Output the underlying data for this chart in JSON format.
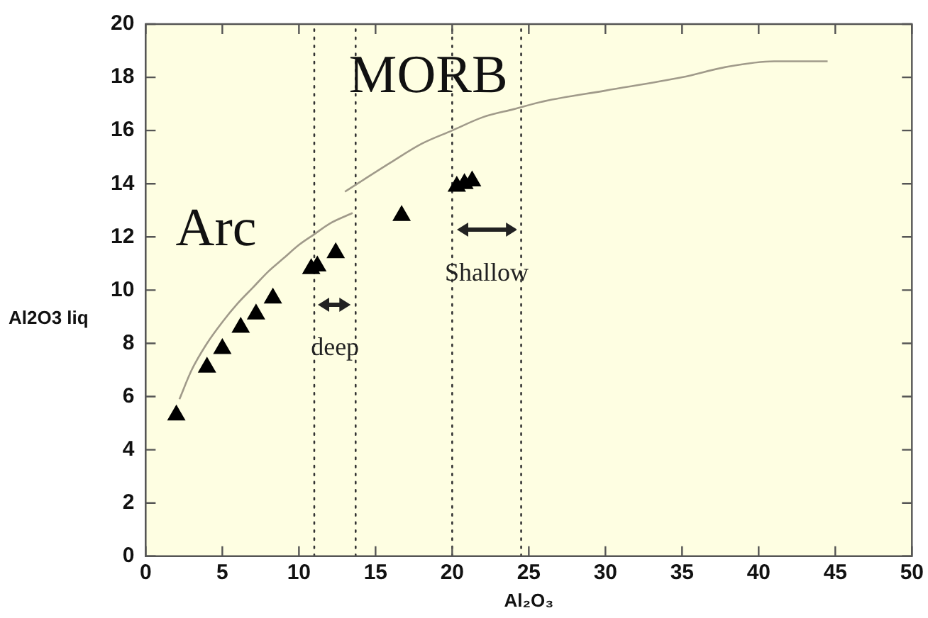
{
  "chart_data": {
    "type": "scatter",
    "xlabel": "Al₂O₃",
    "ylabel": "Al2O3 liq",
    "xlim": [
      0,
      50
    ],
    "xticks": [
      0,
      5,
      10,
      15,
      20,
      25,
      30,
      35,
      40,
      45,
      50
    ],
    "ylim": [
      0,
      20
    ],
    "yticks": [
      0,
      2,
      4,
      6,
      8,
      10,
      12,
      14,
      16,
      18,
      20
    ],
    "grid": false,
    "legend": false,
    "series": [
      {
        "name": "Arc",
        "type": "line",
        "color": "#a09a8a",
        "marker": "none",
        "x": [
          2.2,
          3,
          4,
          5,
          6,
          7,
          8,
          9,
          10,
          11,
          12,
          13.5
        ],
        "values": [
          5.9,
          7,
          8,
          8.8,
          9.5,
          10.1,
          10.7,
          11.2,
          11.7,
          12.1,
          12.5,
          12.9
        ]
      },
      {
        "name": "MORB",
        "type": "line",
        "color": "#a09a8a",
        "marker": "none",
        "x": [
          13,
          16,
          18,
          20,
          22,
          24,
          26,
          30,
          35,
          38,
          41,
          44.5
        ],
        "values": [
          13.7,
          14.8,
          15.5,
          16,
          16.5,
          16.8,
          17.1,
          17.5,
          18,
          18.4,
          18.6,
          18.6
        ]
      },
      {
        "color": "#000000",
        "marker": "triangle",
        "x": [
          2,
          4,
          5,
          6.2,
          7.2,
          8.3,
          10.8,
          11.2,
          12.4,
          16.7,
          20.3,
          20.8,
          21.3
        ],
        "values": [
          5.3,
          7.1,
          7.8,
          8.6,
          9.1,
          9.7,
          10.8,
          10.9,
          11.4,
          12.8,
          13.9,
          14,
          14.1
        ]
      }
    ],
    "ref_lines": [
      {
        "axis": "x",
        "value": 11,
        "color": "#333333",
        "line_style": "dotted"
      },
      {
        "axis": "x",
        "value": 13.7,
        "color": "#333333",
        "line_style": "dotted"
      },
      {
        "axis": "x",
        "value": 20,
        "color": "#333333",
        "line_style": "dotted"
      },
      {
        "axis": "x",
        "value": 24.5,
        "color": "#333333",
        "line_style": "dotted"
      }
    ],
    "annotations": [
      "deep",
      "Shallow"
    ]
  }
}
